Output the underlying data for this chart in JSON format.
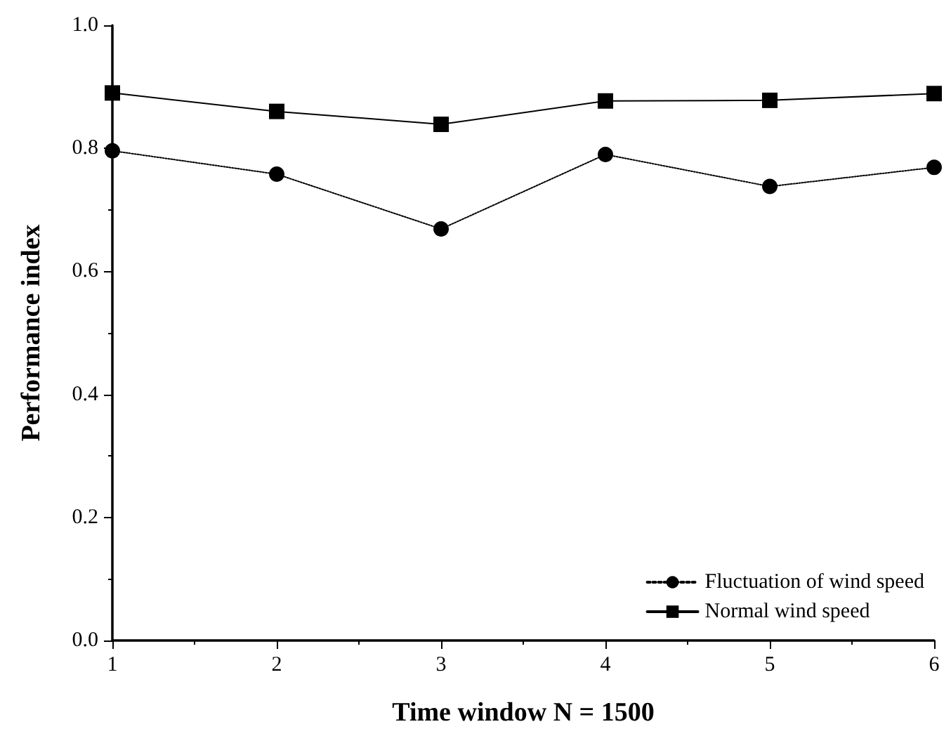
{
  "chart_data": {
    "type": "line",
    "xlabel": "Time window N = 1500",
    "ylabel": "Performance index",
    "x": [
      1,
      2,
      3,
      4,
      5,
      6
    ],
    "series": [
      {
        "name": "Fluctuation of wind speed",
        "color": "#000000",
        "marker": "circle",
        "line_style": "dotted",
        "values": [
          0.796,
          0.758,
          0.669,
          0.79,
          0.738,
          0.769
        ]
      },
      {
        "name": "Normal wind speed",
        "color": "#000000",
        "marker": "square",
        "line_style": "solid",
        "values": [
          0.89,
          0.86,
          0.839,
          0.877,
          0.878,
          0.889
        ]
      }
    ],
    "xlim": [
      1,
      6
    ],
    "xticks": [
      1,
      2,
      3,
      4,
      5,
      6
    ],
    "ylim": [
      0,
      1
    ],
    "yticks": [
      {
        "value": 0,
        "label": "0.0"
      },
      {
        "value": 0.2,
        "label": "0.2"
      },
      {
        "value": 0.4,
        "label": "0.4"
      },
      {
        "value": 0.6,
        "label": "0.6"
      },
      {
        "value": 0.8,
        "label": "0.8"
      },
      {
        "value": 1,
        "label": "1.0"
      }
    ],
    "grid": false,
    "legend": "bottom right"
  }
}
